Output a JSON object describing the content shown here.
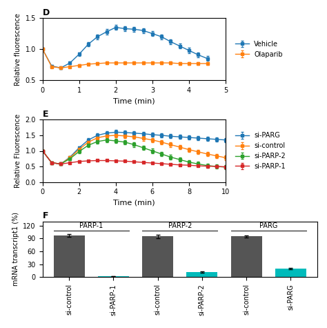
{
  "chart_data": [
    {
      "type": "line",
      "title": "D",
      "xlabel": "Time (min)",
      "ylabel": "Relative fluorescence",
      "x": [
        0,
        0.25,
        0.5,
        0.75,
        1.0,
        1.25,
        1.5,
        1.75,
        2.0,
        2.25,
        2.5,
        2.75,
        3.0,
        3.25,
        3.5,
        3.75,
        4.0,
        4.25,
        4.5
      ],
      "series": [
        {
          "name": "Vehicle",
          "values": [
            1.0,
            0.73,
            0.7,
            0.78,
            0.92,
            1.08,
            1.2,
            1.28,
            1.35,
            1.33,
            1.32,
            1.3,
            1.25,
            1.2,
            1.12,
            1.05,
            0.98,
            0.91,
            0.85
          ],
          "errors": [
            0.02,
            0.02,
            0.02,
            0.02,
            0.03,
            0.03,
            0.04,
            0.04,
            0.04,
            0.04,
            0.04,
            0.04,
            0.04,
            0.04,
            0.04,
            0.04,
            0.04,
            0.04,
            0.04
          ]
        },
        {
          "name": "Olaparib",
          "values": [
            1.0,
            0.72,
            0.7,
            0.72,
            0.74,
            0.76,
            0.77,
            0.78,
            0.78,
            0.78,
            0.78,
            0.78,
            0.78,
            0.78,
            0.78,
            0.77,
            0.77,
            0.77,
            0.77
          ],
          "errors": [
            0.02,
            0.02,
            0.02,
            0.02,
            0.02,
            0.02,
            0.02,
            0.02,
            0.02,
            0.02,
            0.02,
            0.02,
            0.02,
            0.02,
            0.02,
            0.02,
            0.02,
            0.02,
            0.02
          ]
        }
      ],
      "xlim": [
        0,
        5
      ],
      "xticks": [
        0,
        1,
        2,
        3,
        4,
        5
      ],
      "ylim": [
        0.5,
        1.5
      ],
      "yticks": [
        0.5,
        1.0,
        1.5
      ],
      "marker": "square",
      "line_style": "solid",
      "legend": "right"
    },
    {
      "type": "line",
      "title": "E",
      "xlabel": "Time (min)",
      "ylabel": "Relative Fluorescence",
      "x": [
        0,
        0.5,
        1.0,
        1.5,
        2.0,
        2.5,
        3.0,
        3.5,
        4.0,
        4.5,
        5.0,
        5.5,
        6.0,
        6.5,
        7.0,
        7.5,
        8.0,
        8.5,
        9.0,
        9.5,
        10.0
      ],
      "series": [
        {
          "name": "si-PARG",
          "values": [
            1.0,
            0.62,
            0.58,
            0.8,
            1.1,
            1.35,
            1.5,
            1.57,
            1.6,
            1.59,
            1.57,
            1.55,
            1.52,
            1.5,
            1.47,
            1.45,
            1.43,
            1.41,
            1.39,
            1.37,
            1.35
          ],
          "errors": [
            0.03,
            0.03,
            0.03,
            0.04,
            0.05,
            0.06,
            0.06,
            0.07,
            0.07,
            0.07,
            0.07,
            0.07,
            0.07,
            0.07,
            0.07,
            0.07,
            0.07,
            0.07,
            0.07,
            0.07,
            0.07
          ]
        },
        {
          "name": "si-control",
          "values": [
            1.0,
            0.62,
            0.58,
            0.78,
            1.05,
            1.28,
            1.42,
            1.48,
            1.5,
            1.48,
            1.45,
            1.4,
            1.35,
            1.28,
            1.2,
            1.12,
            1.04,
            0.97,
            0.9,
            0.84,
            0.78
          ],
          "errors": [
            0.03,
            0.03,
            0.03,
            0.04,
            0.05,
            0.06,
            0.06,
            0.07,
            0.07,
            0.07,
            0.07,
            0.07,
            0.07,
            0.07,
            0.07,
            0.07,
            0.07,
            0.07,
            0.07,
            0.07,
            0.07
          ]
        },
        {
          "name": "si-PARP-2",
          "values": [
            1.0,
            0.62,
            0.58,
            0.75,
            0.98,
            1.18,
            1.3,
            1.35,
            1.32,
            1.28,
            1.2,
            1.1,
            1.0,
            0.9,
            0.8,
            0.72,
            0.64,
            0.58,
            0.53,
            0.5,
            0.48
          ],
          "errors": [
            0.03,
            0.03,
            0.03,
            0.04,
            0.05,
            0.06,
            0.06,
            0.07,
            0.07,
            0.07,
            0.07,
            0.07,
            0.07,
            0.07,
            0.07,
            0.07,
            0.07,
            0.07,
            0.07,
            0.07,
            0.07
          ]
        },
        {
          "name": "si-PARP-1",
          "values": [
            1.0,
            0.62,
            0.58,
            0.62,
            0.66,
            0.68,
            0.69,
            0.69,
            0.68,
            0.67,
            0.65,
            0.63,
            0.61,
            0.59,
            0.57,
            0.55,
            0.54,
            0.52,
            0.51,
            0.5,
            0.49
          ],
          "errors": [
            0.02,
            0.02,
            0.02,
            0.02,
            0.02,
            0.02,
            0.02,
            0.02,
            0.02,
            0.02,
            0.02,
            0.02,
            0.02,
            0.02,
            0.02,
            0.02,
            0.02,
            0.02,
            0.02,
            0.02,
            0.02
          ]
        }
      ],
      "xlim": [
        0,
        10
      ],
      "xticks": [
        0,
        2,
        4,
        6,
        8,
        10
      ],
      "ylim": [
        0.0,
        2.0
      ],
      "yticks": [
        0.0,
        0.5,
        1.0,
        1.5,
        2.0
      ],
      "marker": "square",
      "line_style": "solid",
      "legend": "right"
    },
    {
      "type": "bar",
      "title": "F",
      "ylabel": "mRNA transcript1 (%)",
      "groups": [
        "PARP-1",
        "PARP-2",
        "PARG"
      ],
      "categories": [
        "si-control",
        "si-PARP-1",
        "si-control",
        "si-PARP-2",
        "si-control",
        "si-PARG"
      ],
      "values": [
        97,
        2,
        95,
        12,
        95,
        20
      ],
      "errors": [
        3,
        0.5,
        4,
        2,
        3,
        2
      ],
      "colors": [
        "#555555",
        "#00bbbb",
        "#555555",
        "#00bbbb",
        "#555555",
        "#00bbbb"
      ],
      "ylim": [
        0,
        130
      ],
      "yticks": [
        0,
        30,
        60,
        90,
        120
      ]
    }
  ]
}
